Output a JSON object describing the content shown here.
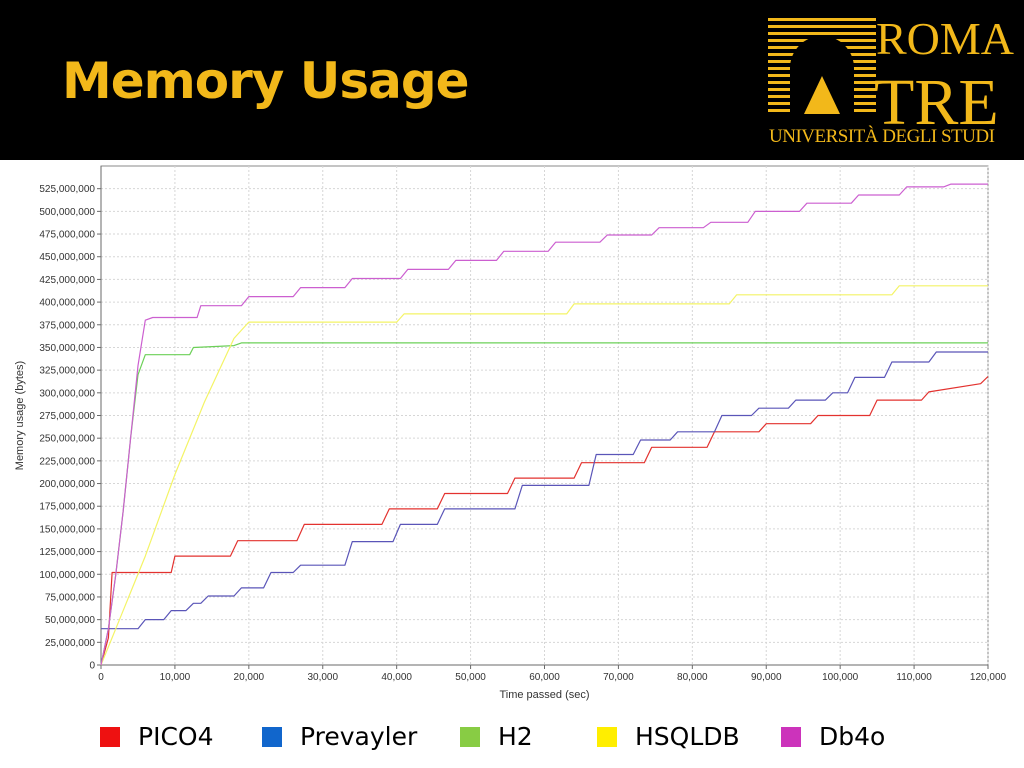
{
  "header": {
    "title": "Memory Usage",
    "logo": {
      "line1": "ROMA",
      "line2": "TRE",
      "line3": "UNIVERSITÀ DEGLI STUDI",
      "color": "#f2b81a"
    }
  },
  "chart_data": {
    "type": "line",
    "title": "",
    "xlabel": "Time passed (sec)",
    "ylabel": "Memory usage (bytes)",
    "xlim": [
      0,
      120000
    ],
    "ylim": [
      0,
      550000000
    ],
    "xticks": [
      0,
      10000,
      20000,
      30000,
      40000,
      50000,
      60000,
      70000,
      80000,
      90000,
      100000,
      110000,
      120000
    ],
    "xtick_labels": [
      "0",
      "10,000",
      "20,000",
      "30,000",
      "40,000",
      "50,000",
      "60,000",
      "70,000",
      "80,000",
      "90,000",
      "100,000",
      "110,000",
      "120,000"
    ],
    "yticks": [
      0,
      25000000,
      50000000,
      75000000,
      100000000,
      125000000,
      150000000,
      175000000,
      200000000,
      225000000,
      250000000,
      275000000,
      300000000,
      325000000,
      350000000,
      375000000,
      400000000,
      425000000,
      450000000,
      475000000,
      500000000,
      525000000
    ],
    "ytick_labels": [
      "0",
      "25,000,000",
      "50,000,000",
      "75,000,000",
      "100,000,000",
      "125,000,000",
      "150,000,000",
      "175,000,000",
      "200,000,000",
      "225,000,000",
      "250,000,000",
      "275,000,000",
      "300,000,000",
      "325,000,000",
      "350,000,000",
      "375,000,000",
      "400,000,000",
      "425,000,000",
      "450,000,000",
      "475,000,000",
      "500,000,000",
      "525,000,000"
    ],
    "grid": true,
    "legend_position": "bottom",
    "series": [
      {
        "name": "PICO4",
        "color": "#e3322f",
        "legend_color": "#ee1111",
        "x": [
          0,
          1000,
          1500,
          9500,
          10000,
          17500,
          18500,
          26500,
          27500,
          38000,
          39000,
          45500,
          46500,
          55000,
          56000,
          64000,
          65000,
          73500,
          74500,
          82000,
          83000,
          89000,
          90000,
          96000,
          97000,
          104000,
          105000,
          111000,
          112000,
          119000,
          120000
        ],
        "y": [
          0,
          30000000,
          102000000,
          102000000,
          120000000,
          120000000,
          137000000,
          137000000,
          155000000,
          155000000,
          172000000,
          172000000,
          189000000,
          189000000,
          206000000,
          206000000,
          223000000,
          223000000,
          240000000,
          240000000,
          257000000,
          257000000,
          266000000,
          266000000,
          275000000,
          275000000,
          292000000,
          292000000,
          301000000,
          310000000,
          318000000
        ]
      },
      {
        "name": "Prevayler",
        "color": "#5a55b8",
        "legend_color": "#1166cc",
        "x": [
          0,
          5000,
          6000,
          8500,
          9500,
          11500,
          12500,
          13500,
          14500,
          18000,
          19000,
          22000,
          23000,
          26000,
          27000,
          33000,
          34000,
          39500,
          40500,
          45500,
          46500,
          56000,
          57000,
          66000,
          67000,
          72000,
          73000,
          77000,
          78000,
          83000,
          84000,
          88000,
          89000,
          93000,
          94000,
          98000,
          99000,
          101000,
          102000,
          106000,
          107000,
          112000,
          113000,
          120000
        ],
        "y": [
          40000000,
          40000000,
          50000000,
          50000000,
          60000000,
          60000000,
          68000000,
          68000000,
          76000000,
          76000000,
          85000000,
          85000000,
          102000000,
          102000000,
          110000000,
          110000000,
          136000000,
          136000000,
          155000000,
          155000000,
          172000000,
          172000000,
          198000000,
          198000000,
          232000000,
          232000000,
          248000000,
          248000000,
          257000000,
          257000000,
          275000000,
          275000000,
          283000000,
          283000000,
          292000000,
          292000000,
          300000000,
          300000000,
          317000000,
          317000000,
          334000000,
          334000000,
          345000000,
          345000000
        ]
      },
      {
        "name": "H2",
        "color": "#6cd058",
        "legend_color": "#88cc44",
        "x": [
          0,
          1000,
          2000,
          3000,
          4000,
          5000,
          6000,
          7000,
          12000,
          12500,
          18000,
          19000,
          120000
        ],
        "y": [
          0,
          40000000,
          100000000,
          170000000,
          250000000,
          320000000,
          342000000,
          342000000,
          342000000,
          350000000,
          352000000,
          355000000,
          355000000
        ],
        "flat_after": 25000
      },
      {
        "name": "HSQLDB",
        "color": "#f4f466",
        "legend_color": "#ffee00",
        "x": [
          0,
          2000,
          6000,
          10000,
          14000,
          18000,
          20000,
          40000,
          41000,
          63000,
          64000,
          85000,
          86000,
          107000,
          108000,
          120000
        ],
        "y": [
          0,
          40000000,
          120000000,
          210000000,
          290000000,
          360000000,
          378000000,
          378000000,
          387000000,
          387000000,
          398000000,
          398000000,
          408000000,
          408000000,
          418000000,
          418000000
        ]
      },
      {
        "name": "Db4o",
        "color": "#cc5fd0",
        "legend_color": "#cc33bb",
        "x": [
          0,
          1000,
          2000,
          3000,
          4000,
          5000,
          6000,
          7000,
          13000,
          13500,
          19000,
          20000,
          26000,
          27000,
          33000,
          34000,
          40500,
          41500,
          47000,
          48000,
          53500,
          54500,
          60500,
          61500,
          67500,
          68500,
          74500,
          75500,
          81500,
          82500,
          87500,
          88500,
          94500,
          95500,
          101500,
          102500,
          108000,
          109000,
          114000,
          115000,
          120000
        ],
        "y": [
          0,
          40000000,
          100000000,
          170000000,
          250000000,
          330000000,
          380000000,
          383000000,
          383000000,
          396000000,
          396000000,
          406000000,
          406000000,
          416000000,
          416000000,
          426000000,
          426000000,
          436000000,
          436000000,
          446000000,
          446000000,
          456000000,
          456000000,
          466000000,
          466000000,
          474000000,
          474000000,
          482000000,
          482000000,
          488000000,
          488000000,
          500000000,
          500000000,
          509000000,
          509000000,
          518000000,
          518000000,
          527000000,
          527000000,
          530000000,
          530000000
        ]
      }
    ]
  }
}
